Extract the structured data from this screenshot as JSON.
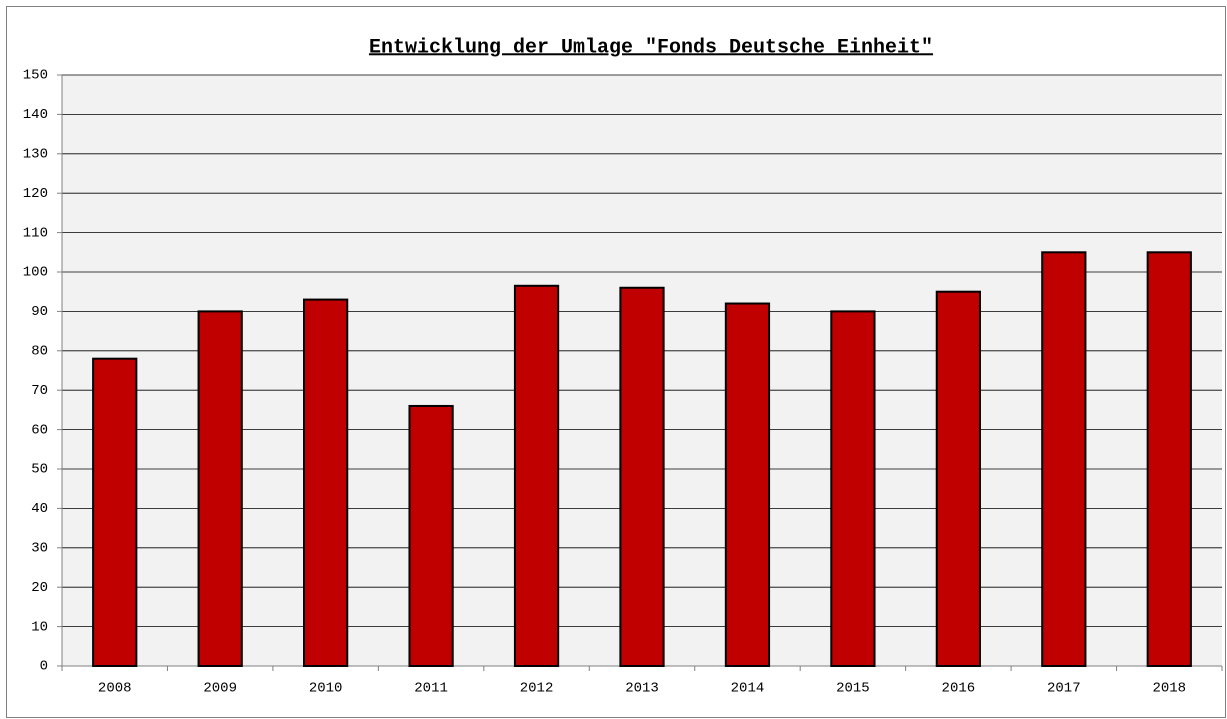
{
  "chart_data": {
    "type": "bar",
    "title": "Entwicklung der Umlage \"Fonds Deutsche Einheit\"",
    "categories": [
      "2008",
      "2009",
      "2010",
      "2011",
      "2012",
      "2013",
      "2014",
      "2015",
      "2016",
      "2017",
      "2018"
    ],
    "values": [
      78,
      90,
      93,
      66,
      96.5,
      96,
      92,
      90,
      95,
      105,
      105
    ],
    "color": "#c00000",
    "ylim": [
      0,
      150
    ],
    "yticks": [
      0,
      10,
      20,
      30,
      40,
      50,
      60,
      70,
      80,
      90,
      100,
      110,
      120,
      130,
      140,
      150
    ],
    "grid": true
  }
}
